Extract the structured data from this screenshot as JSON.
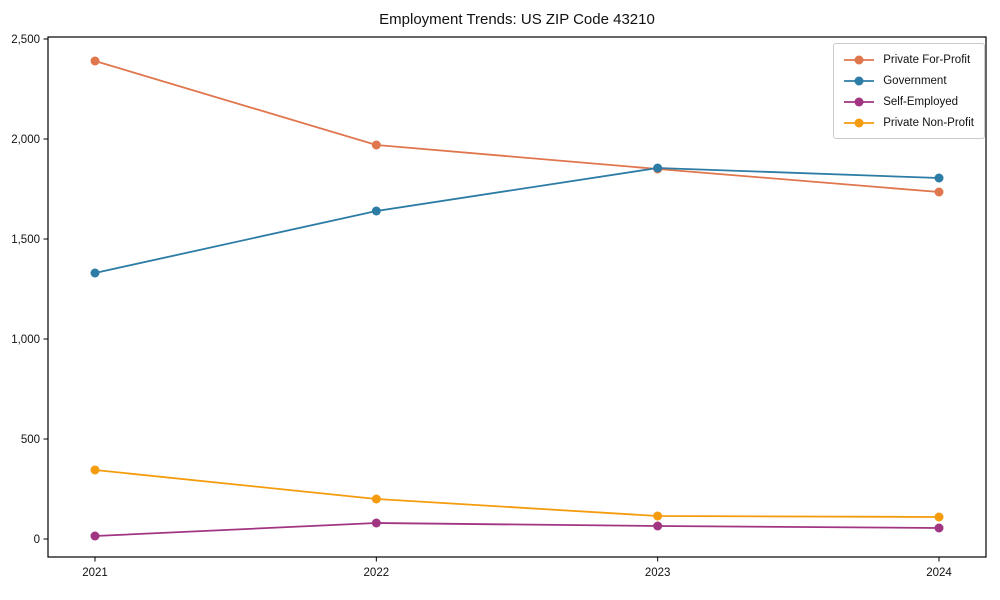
{
  "title": "Employment Trends: US ZIP Code 43210",
  "chart_data": {
    "type": "line",
    "title": "Employment Trends: US ZIP Code 43210",
    "x": [
      "2021",
      "2022",
      "2023",
      "2024"
    ],
    "series": [
      {
        "name": "Private For-Profit",
        "color": "#e0764d",
        "values": [
          2390,
          1970,
          1850,
          1735
        ]
      },
      {
        "name": "Government",
        "color": "#2d7ca6",
        "values": [
          1330,
          1640,
          1855,
          1805
        ]
      },
      {
        "name": "Self-Employed",
        "color": "#a23582",
        "values": [
          15,
          80,
          65,
          55
        ]
      },
      {
        "name": "Private Non-Profit",
        "color": "#f49c0e",
        "values": [
          345,
          200,
          115,
          110
        ]
      }
    ],
    "xlabel": "",
    "ylabel": "",
    "ylim": [
      -90,
      2510
    ],
    "yticks": [
      0,
      500,
      1000,
      1500,
      2000,
      2500
    ],
    "ytick_labels": [
      "0",
      "500",
      "1,000",
      "1,500",
      "2,000",
      "2,500"
    ],
    "legend_position": "upper right",
    "grid": false,
    "frame_color": "#000000",
    "marker": "circle"
  }
}
